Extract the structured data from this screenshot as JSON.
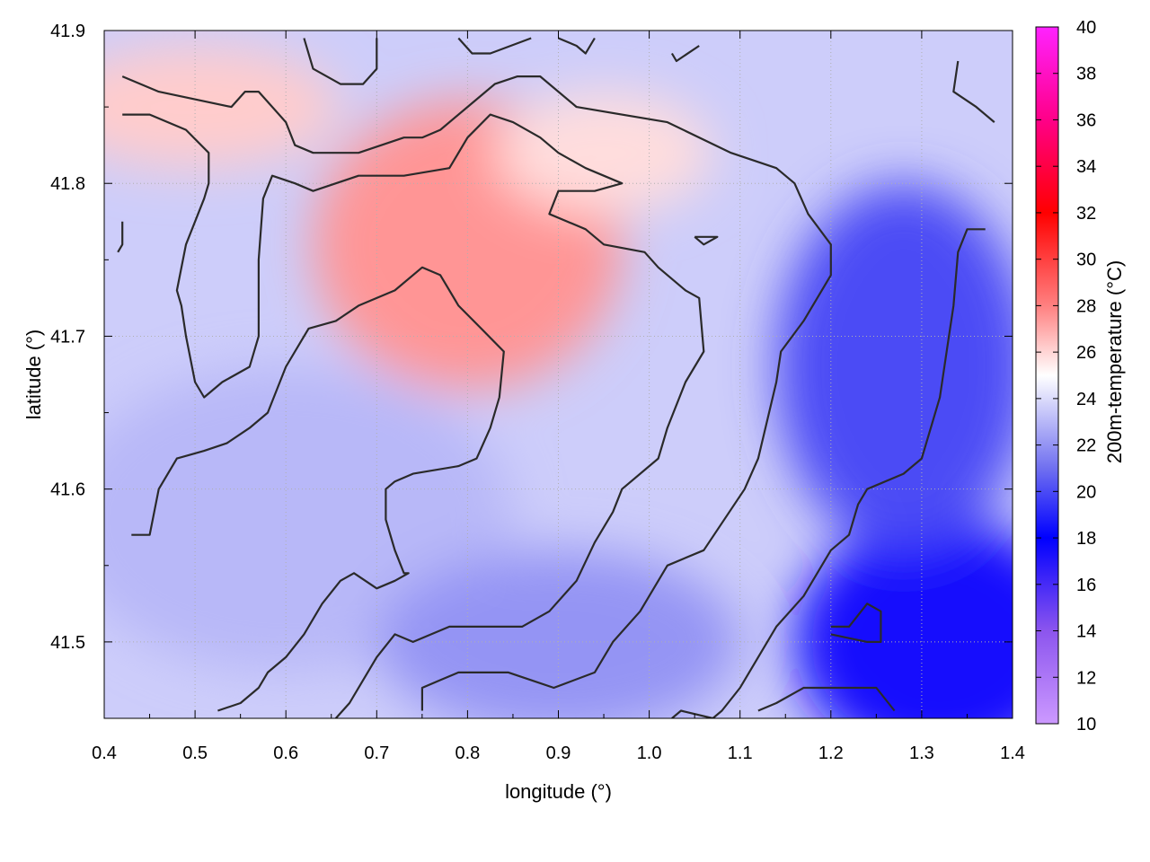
{
  "chart_data": {
    "type": "heatmap",
    "title": "",
    "xlabel": "longitude (°)",
    "ylabel": "latitude (°)",
    "colorbar_label": "200m-temperature (°C)",
    "xlim": [
      0.4,
      1.4
    ],
    "ylim": [
      41.45,
      41.9
    ],
    "x_ticks": [
      "0.4",
      "0.5",
      "0.6",
      "0.7",
      "0.8",
      "0.9",
      "1.0",
      "1.1",
      "1.2",
      "1.3",
      "1.4"
    ],
    "y_ticks": [
      "41.5",
      "41.6",
      "41.7",
      "41.8",
      "41.9"
    ],
    "colorbar_range": [
      10,
      40
    ],
    "colorbar_ticks": [
      "10",
      "12",
      "14",
      "16",
      "18",
      "20",
      "22",
      "24",
      "26",
      "28",
      "30",
      "32",
      "34",
      "36",
      "38",
      "40"
    ],
    "grid": true,
    "colormap": [
      {
        "value": 10,
        "color": "#cc99ff"
      },
      {
        "value": 14,
        "color": "#8c55ee"
      },
      {
        "value": 18,
        "color": "#0000ff"
      },
      {
        "value": 21,
        "color": "#7070f0"
      },
      {
        "value": 25,
        "color": "#ffffff"
      },
      {
        "value": 28,
        "color": "#ff8080"
      },
      {
        "value": 32,
        "color": "#ff0000"
      },
      {
        "value": 36,
        "color": "#ff0088"
      },
      {
        "value": 40,
        "color": "#ff22ff"
      }
    ],
    "warm_regions": [
      {
        "cx": 0.8,
        "cy": 41.76,
        "rx": 0.17,
        "ry": 0.095,
        "temp": 27.5
      },
      {
        "cx": 0.5,
        "cy": 41.85,
        "rx": 0.16,
        "ry": 0.04,
        "temp": 26.2
      },
      {
        "cx": 0.95,
        "cy": 41.82,
        "rx": 0.12,
        "ry": 0.04,
        "temp": 25.8
      }
    ],
    "cool_regions": [
      {
        "cx": 1.32,
        "cy": 41.5,
        "rx": 0.16,
        "ry": 0.08,
        "temp": 17.5
      },
      {
        "cx": 1.28,
        "cy": 41.68,
        "rx": 0.14,
        "ry": 0.12,
        "temp": 20.0
      },
      {
        "cx": 0.6,
        "cy": 41.58,
        "rx": 0.25,
        "ry": 0.1,
        "temp": 23.0
      },
      {
        "cx": 0.9,
        "cy": 41.5,
        "rx": 0.2,
        "ry": 0.06,
        "temp": 22.0
      }
    ],
    "contours": [
      [
        [
          0.42,
          41.87
        ],
        [
          0.46,
          41.86
        ],
        [
          0.54,
          41.85
        ],
        [
          0.555,
          41.86
        ],
        [
          0.57,
          41.86
        ],
        [
          0.6,
          41.84
        ],
        [
          0.61,
          41.825
        ],
        [
          0.63,
          41.82
        ],
        [
          0.68,
          41.82
        ],
        [
          0.73,
          41.83
        ],
        [
          0.75,
          41.83
        ],
        [
          0.77,
          41.835
        ],
        [
          0.8,
          41.85
        ],
        [
          0.83,
          41.865
        ],
        [
          0.855,
          41.87
        ],
        [
          0.88,
          41.87
        ],
        [
          0.92,
          41.85
        ],
        [
          1.02,
          41.84
        ],
        [
          1.09,
          41.82
        ],
        [
          1.14,
          41.81
        ],
        [
          1.16,
          41.8
        ],
        [
          1.175,
          41.78
        ],
        [
          1.2,
          41.76
        ],
        [
          1.2,
          41.74
        ],
        [
          1.17,
          41.71
        ],
        [
          1.145,
          41.69
        ],
        [
          1.14,
          41.67
        ],
        [
          1.12,
          41.62
        ],
        [
          1.105,
          41.6
        ],
        [
          1.06,
          41.56
        ],
        [
          1.02,
          41.55
        ],
        [
          0.99,
          41.52
        ],
        [
          0.96,
          41.5
        ],
        [
          0.94,
          41.48
        ],
        [
          0.895,
          41.47
        ],
        [
          0.845,
          41.48
        ],
        [
          0.79,
          41.48
        ],
        [
          0.77,
          41.475
        ],
        [
          0.75,
          41.47
        ],
        [
          0.75,
          41.455
        ]
      ],
      [
        [
          0.42,
          41.845
        ],
        [
          0.45,
          41.845
        ],
        [
          0.49,
          41.835
        ],
        [
          0.515,
          41.82
        ],
        [
          0.515,
          41.8
        ],
        [
          0.51,
          41.79
        ],
        [
          0.49,
          41.76
        ],
        [
          0.48,
          41.73
        ],
        [
          0.485,
          41.72
        ],
        [
          0.49,
          41.7
        ],
        [
          0.5,
          41.67
        ],
        [
          0.51,
          41.66
        ],
        [
          0.53,
          41.67
        ],
        [
          0.56,
          41.68
        ],
        [
          0.57,
          41.7
        ],
        [
          0.57,
          41.75
        ],
        [
          0.575,
          41.79
        ],
        [
          0.585,
          41.805
        ],
        [
          0.61,
          41.8
        ],
        [
          0.63,
          41.795
        ],
        [
          0.68,
          41.805
        ],
        [
          0.73,
          41.805
        ],
        [
          0.78,
          41.81
        ],
        [
          0.8,
          41.83
        ],
        [
          0.825,
          41.845
        ],
        [
          0.85,
          41.84
        ],
        [
          0.88,
          41.83
        ],
        [
          0.9,
          41.82
        ],
        [
          0.93,
          41.81
        ],
        [
          0.97,
          41.8
        ],
        [
          0.94,
          41.795
        ],
        [
          0.9,
          41.795
        ],
        [
          0.89,
          41.78
        ],
        [
          0.93,
          41.77
        ],
        [
          0.95,
          41.76
        ],
        [
          0.995,
          41.755
        ],
        [
          1.01,
          41.745
        ],
        [
          1.04,
          41.73
        ],
        [
          1.055,
          41.725
        ],
        [
          1.06,
          41.69
        ],
        [
          1.04,
          41.67
        ],
        [
          1.02,
          41.64
        ],
        [
          1.01,
          41.62
        ],
        [
          1.0,
          41.615
        ],
        [
          0.97,
          41.6
        ],
        [
          0.96,
          41.585
        ],
        [
          0.94,
          41.565
        ],
        [
          0.92,
          41.54
        ],
        [
          0.89,
          41.52
        ],
        [
          0.86,
          41.51
        ],
        [
          0.84,
          41.51
        ],
        [
          0.78,
          41.51
        ],
        [
          0.74,
          41.5
        ],
        [
          0.72,
          41.505
        ],
        [
          0.7,
          41.49
        ],
        [
          0.67,
          41.46
        ],
        [
          0.655,
          41.45
        ]
      ],
      [
        [
          0.43,
          41.57
        ],
        [
          0.45,
          41.57
        ],
        [
          0.46,
          41.6
        ],
        [
          0.48,
          41.62
        ],
        [
          0.51,
          41.625
        ],
        [
          0.535,
          41.63
        ],
        [
          0.56,
          41.64
        ],
        [
          0.58,
          41.65
        ],
        [
          0.6,
          41.68
        ],
        [
          0.625,
          41.705
        ],
        [
          0.655,
          41.71
        ],
        [
          0.68,
          41.72
        ],
        [
          0.72,
          41.73
        ],
        [
          0.75,
          41.745
        ],
        [
          0.77,
          41.74
        ],
        [
          0.79,
          41.72
        ],
        [
          0.815,
          41.705
        ],
        [
          0.84,
          41.69
        ],
        [
          0.835,
          41.66
        ],
        [
          0.825,
          41.64
        ],
        [
          0.81,
          41.62
        ],
        [
          0.79,
          41.615
        ],
        [
          0.74,
          41.61
        ],
        [
          0.72,
          41.605
        ],
        [
          0.71,
          41.6
        ],
        [
          0.71,
          41.58
        ],
        [
          0.72,
          41.56
        ],
        [
          0.73,
          41.545
        ],
        [
          0.735,
          41.545
        ],
        [
          0.72,
          41.54
        ],
        [
          0.7,
          41.535
        ],
        [
          0.675,
          41.545
        ],
        [
          0.66,
          41.54
        ],
        [
          0.64,
          41.525
        ],
        [
          0.62,
          41.505
        ],
        [
          0.6,
          41.49
        ],
        [
          0.58,
          41.48
        ],
        [
          0.57,
          41.47
        ],
        [
          0.55,
          41.46
        ],
        [
          0.525,
          41.455
        ]
      ],
      [
        [
          1.37,
          41.77
        ],
        [
          1.35,
          41.77
        ],
        [
          1.34,
          41.755
        ],
        [
          1.335,
          41.72
        ],
        [
          1.33,
          41.7
        ],
        [
          1.32,
          41.66
        ],
        [
          1.31,
          41.64
        ],
        [
          1.3,
          41.62
        ],
        [
          1.28,
          41.61
        ],
        [
          1.24,
          41.6
        ],
        [
          1.23,
          41.59
        ],
        [
          1.22,
          41.57
        ],
        [
          1.2,
          41.56
        ],
        [
          1.17,
          41.53
        ],
        [
          1.14,
          41.51
        ],
        [
          1.12,
          41.49
        ],
        [
          1.1,
          41.47
        ],
        [
          1.08,
          41.455
        ],
        [
          1.07,
          41.45
        ],
        [
          1.035,
          41.455
        ],
        [
          1.025,
          41.45
        ]
      ],
      [
        [
          0.62,
          41.895
        ],
        [
          0.63,
          41.875
        ],
        [
          0.66,
          41.865
        ],
        [
          0.685,
          41.865
        ],
        [
          0.7,
          41.875
        ],
        [
          0.7,
          41.895
        ]
      ],
      [
        [
          0.79,
          41.895
        ],
        [
          0.805,
          41.885
        ],
        [
          0.825,
          41.885
        ],
        [
          0.87,
          41.895
        ]
      ],
      [
        [
          0.9,
          41.895
        ],
        [
          0.92,
          41.89
        ],
        [
          0.93,
          41.885
        ],
        [
          0.94,
          41.895
        ]
      ],
      [
        [
          1.025,
          41.885
        ],
        [
          1.03,
          41.88
        ],
        [
          1.055,
          41.89
        ]
      ],
      [
        [
          1.34,
          41.88
        ],
        [
          1.335,
          41.86
        ],
        [
          1.36,
          41.85
        ],
        [
          1.38,
          41.84
        ]
      ],
      [
        [
          0.42,
          41.775
        ],
        [
          0.42,
          41.76
        ],
        [
          0.415,
          41.755
        ]
      ],
      [
        [
          1.05,
          41.765
        ],
        [
          1.06,
          41.765
        ],
        [
          1.075,
          41.765
        ],
        [
          1.06,
          41.76
        ],
        [
          1.05,
          41.765
        ]
      ],
      [
        [
          1.2,
          41.51
        ],
        [
          1.22,
          41.51
        ],
        [
          1.24,
          41.525
        ],
        [
          1.255,
          41.52
        ],
        [
          1.255,
          41.5
        ],
        [
          1.24,
          41.5
        ],
        [
          1.2,
          41.505
        ]
      ],
      [
        [
          1.12,
          41.455
        ],
        [
          1.14,
          41.46
        ],
        [
          1.17,
          41.47
        ],
        [
          1.25,
          41.47
        ],
        [
          1.27,
          41.455
        ]
      ]
    ]
  }
}
